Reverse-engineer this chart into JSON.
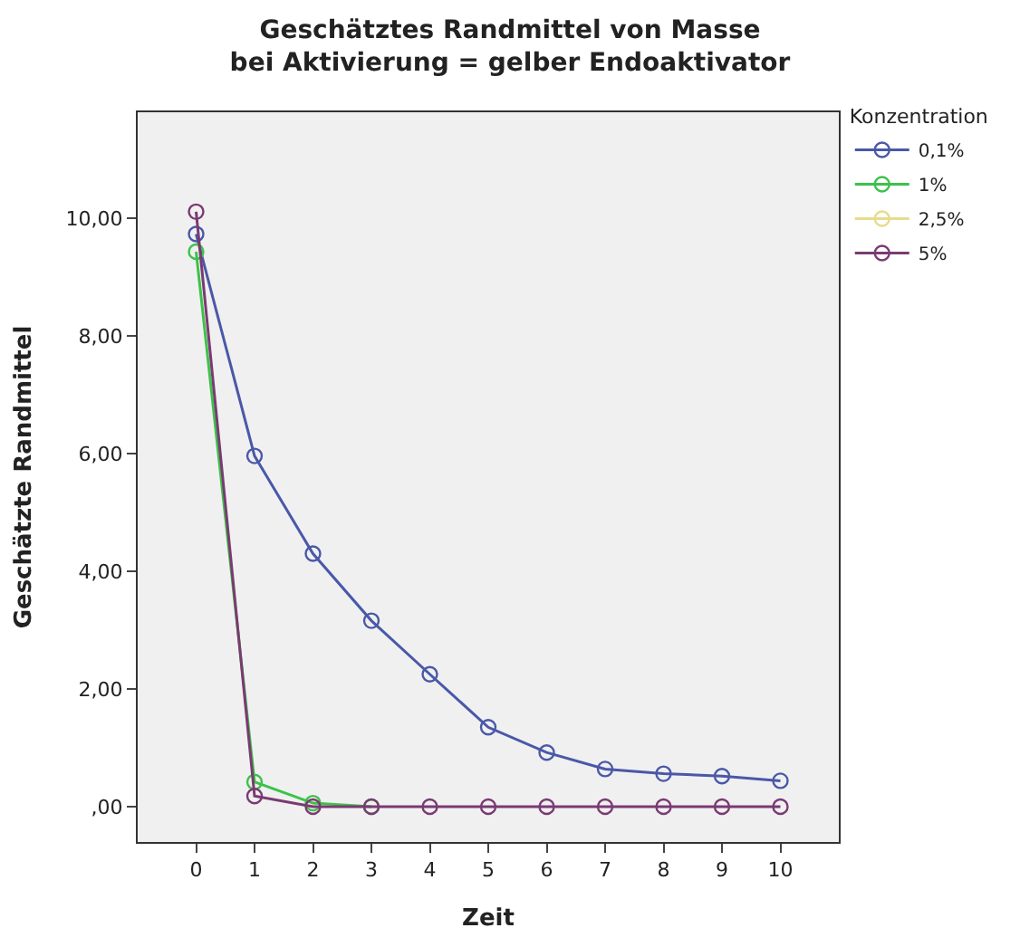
{
  "chart_data": {
    "type": "line",
    "title": "Geschätztes Randmittel von Masse",
    "subtitle": "bei Aktivierung = gelber Endoaktivator",
    "xlabel": "Zeit",
    "ylabel": "Geschätzte Randmittel",
    "legend_title": "Konzentration",
    "categories": [
      "0",
      "1",
      "2",
      "3",
      "4",
      "5",
      "6",
      "7",
      "8",
      "9",
      "10"
    ],
    "series": [
      {
        "name": "0,1%",
        "color": "#4a58a8",
        "values": [
          9.73,
          5.96,
          4.3,
          3.16,
          2.25,
          1.35,
          0.92,
          0.64,
          0.56,
          0.52,
          0.44
        ]
      },
      {
        "name": "1%",
        "color": "#3cc24a",
        "values": [
          9.43,
          0.42,
          0.06,
          0,
          null,
          null,
          null,
          null,
          null,
          null,
          null
        ]
      },
      {
        "name": "2,5%",
        "color": "#e6dc8c",
        "values": [
          null,
          null,
          null,
          null,
          null,
          null,
          null,
          null,
          null,
          null,
          null
        ]
      },
      {
        "name": "5%",
        "color": "#7a3a72",
        "values": [
          10.11,
          0.18,
          0,
          0,
          0,
          0,
          0,
          0,
          0,
          0,
          0
        ]
      }
    ],
    "ylim": [
      -0.6,
      11.8
    ],
    "yticks": [
      {
        "value": 0,
        "label": ",00"
      },
      {
        "value": 2,
        "label": "2,00"
      },
      {
        "value": 4,
        "label": "4,00"
      },
      {
        "value": 6,
        "label": "6,00"
      },
      {
        "value": 8,
        "label": "8,00"
      },
      {
        "value": 10,
        "label": "10,00"
      }
    ],
    "grid": false,
    "legend": "top right",
    "marker": "circle",
    "line_style": "solid"
  }
}
